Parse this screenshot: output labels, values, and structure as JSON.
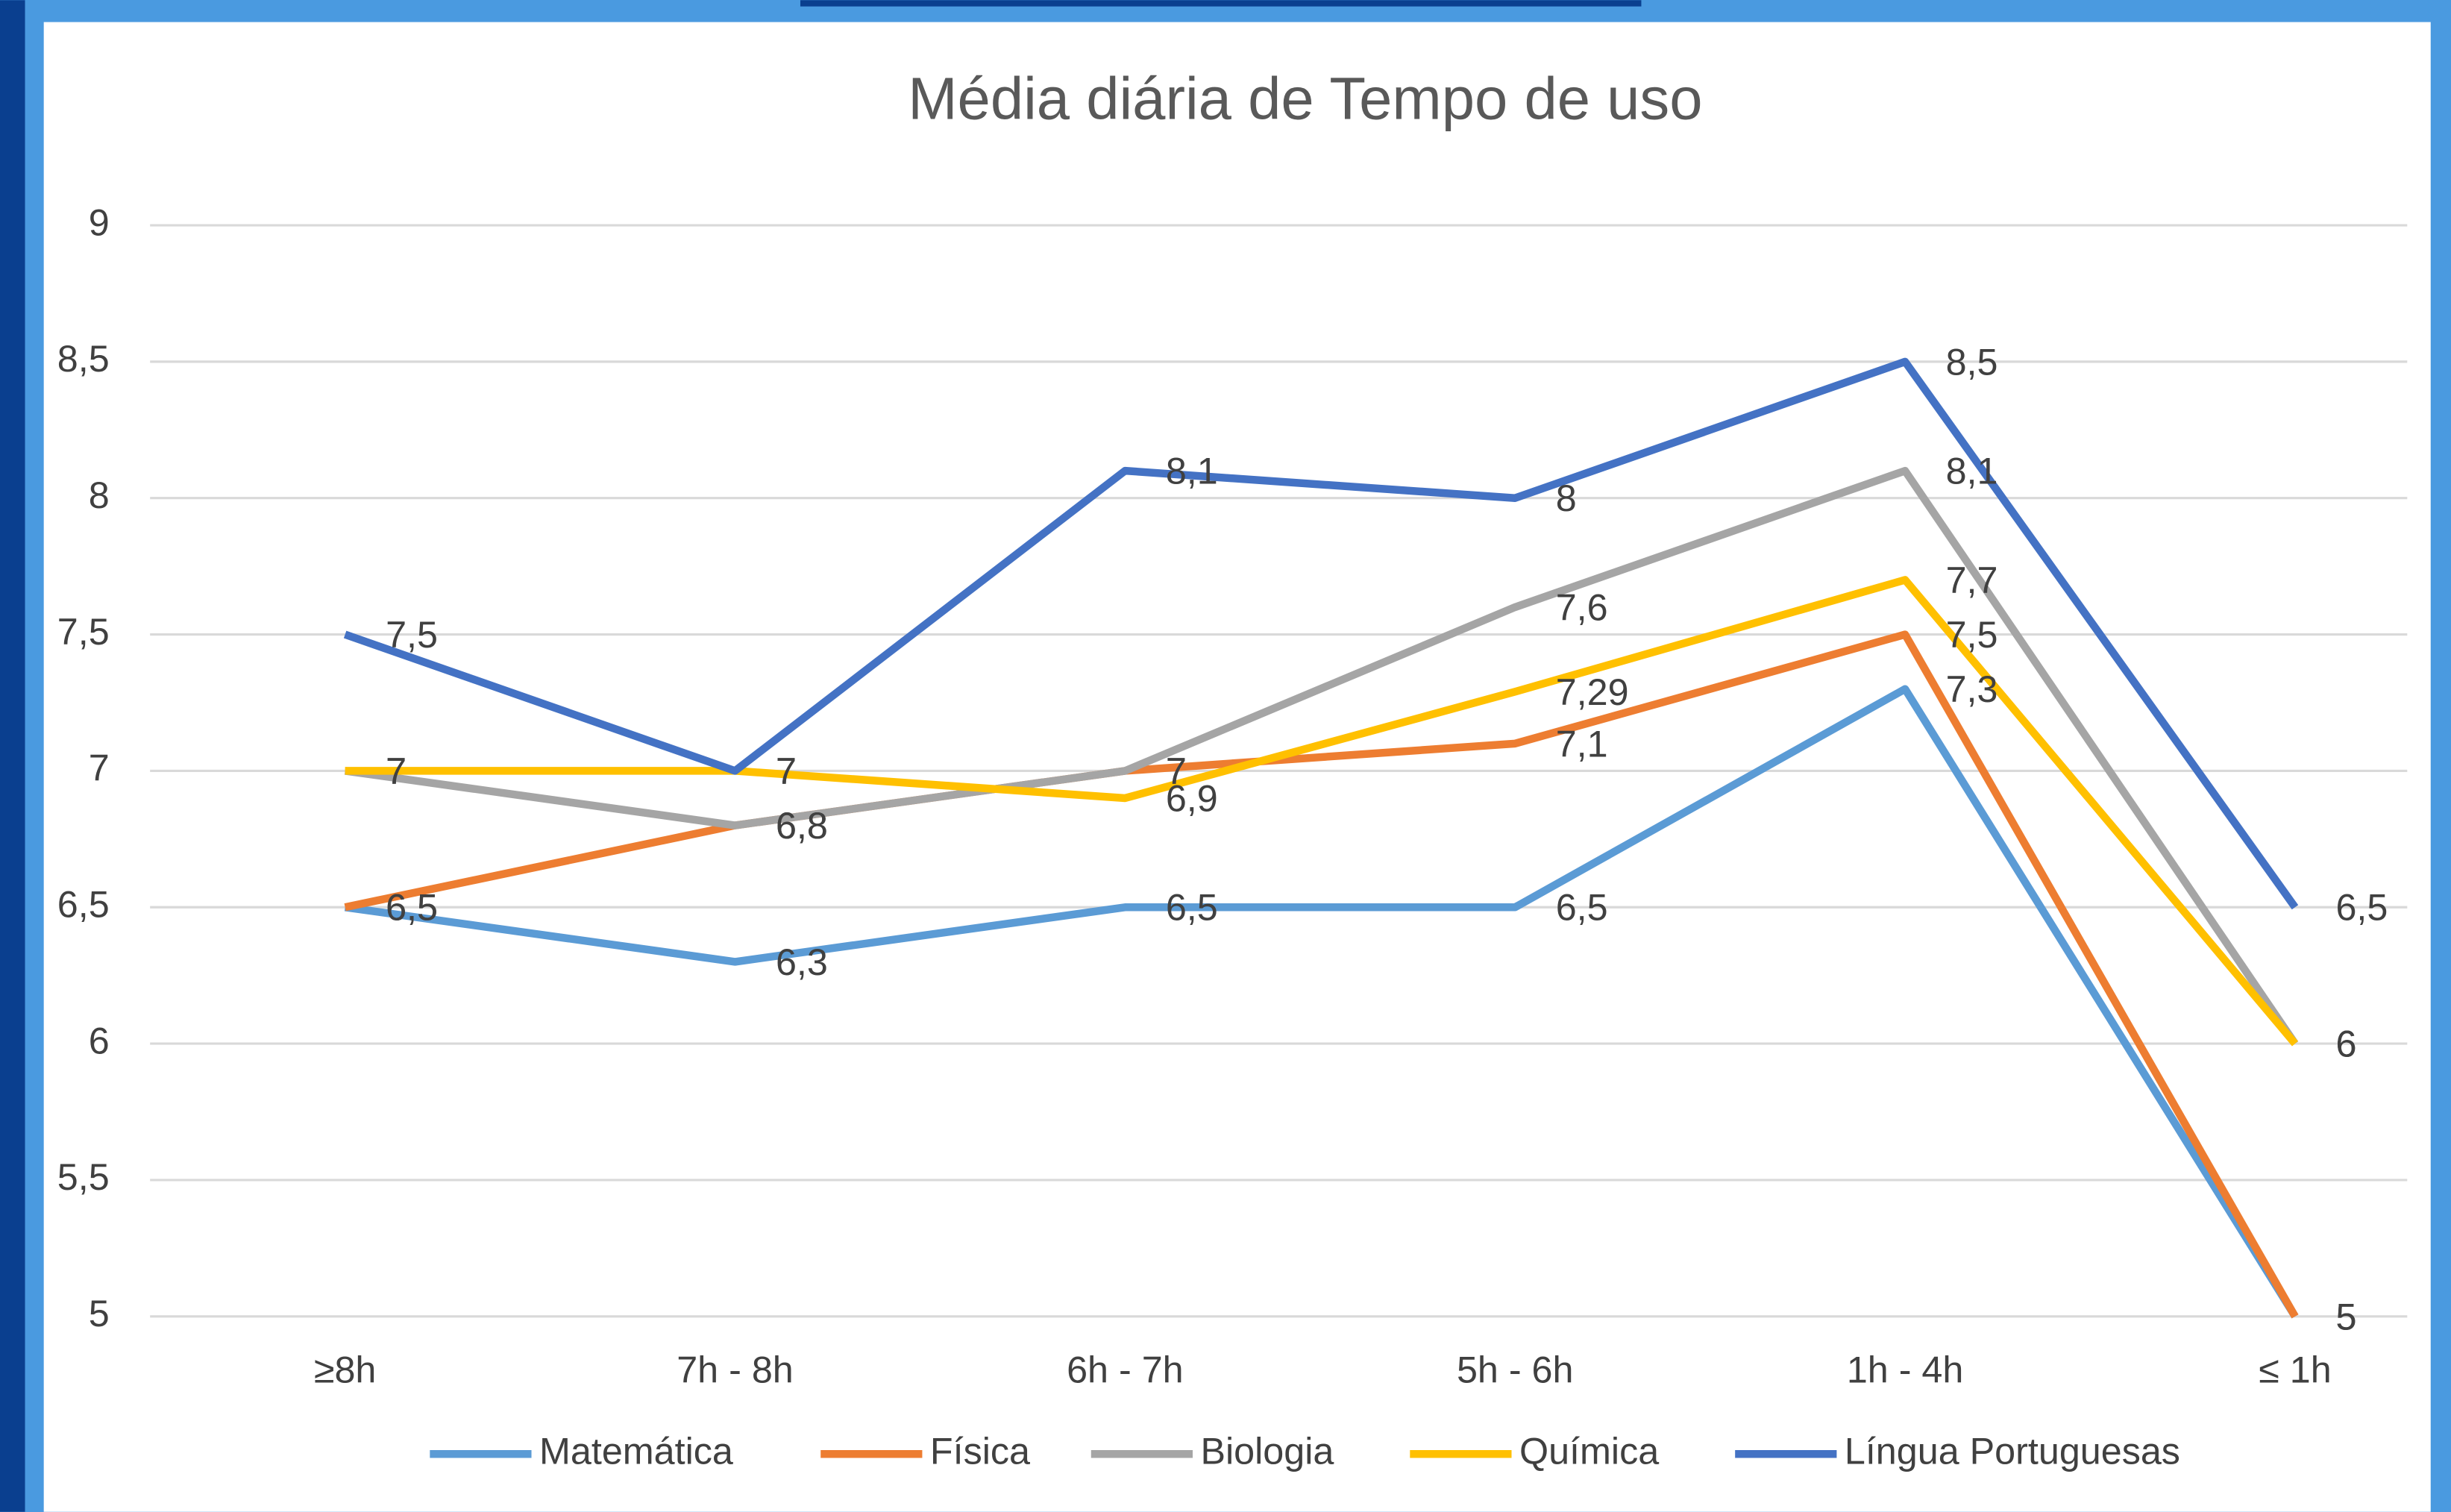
{
  "chart_data": {
    "type": "line",
    "title": "Média diária de Tempo de uso",
    "categories": [
      "≥8h",
      "7h - 8h",
      "6h - 7h",
      "5h - 6h",
      "1h - 4h",
      "≤ 1h"
    ],
    "series": [
      {
        "name": "Matemática",
        "color": "#5b9bd5",
        "values": [
          6.5,
          6.3,
          6.5,
          6.5,
          7.3,
          5
        ],
        "value_labels": [
          "6,5",
          "6,3",
          "6,5",
          "6,5",
          "7,3",
          "5"
        ]
      },
      {
        "name": "Física",
        "color": "#ed7d31",
        "values": [
          6.5,
          6.8,
          7,
          7.1,
          7.5,
          5
        ],
        "value_labels": [
          "6,5",
          "6,8",
          "7",
          "7,1",
          "7,5",
          "5"
        ]
      },
      {
        "name": "Biologia",
        "color": "#a5a5a5",
        "values": [
          7,
          6.8,
          7,
          7.6,
          8.1,
          6
        ],
        "value_labels": [
          "7",
          "6,8",
          "7",
          "7,6",
          "8,1",
          "6"
        ]
      },
      {
        "name": "Química",
        "color": "#ffc000",
        "values": [
          7,
          7,
          6.9,
          7.29,
          7.7,
          6
        ],
        "value_labels": [
          "7",
          "7",
          "6,9",
          "7,29",
          "7,7",
          "6"
        ]
      },
      {
        "name": "Língua Portuguesas",
        "color": "#4472c4",
        "values": [
          7.5,
          7,
          8.1,
          8,
          8.5,
          6.5
        ],
        "value_labels": [
          "7,5",
          "7",
          "8,1",
          "8",
          "8,5",
          "6,5"
        ]
      }
    ],
    "ylim": [
      5,
      9
    ],
    "yticks": [
      5,
      {
        "value": 5.5,
        "label": "5,5"
      },
      6,
      {
        "value": 6.5,
        "label": "6,5"
      },
      7,
      {
        "value": 7.5,
        "label": "7,5"
      },
      8,
      {
        "value": 8.5,
        "label": "8,5"
      },
      9
    ],
    "grid": true,
    "legend": "bottom"
  }
}
